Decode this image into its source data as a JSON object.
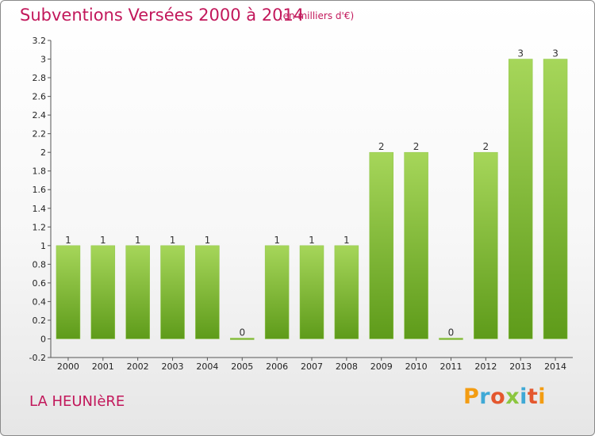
{
  "header": {
    "title": "Subventions Versées 2000 à 2014",
    "subtitle": "(en milliers d'€)"
  },
  "footer": {
    "location": "LA HEUNIèRE",
    "logo": "Proxiti"
  },
  "colors": {
    "bar_top": "#a6d65a",
    "bar_bottom": "#5e9b1a",
    "accent": "#c2185b"
  },
  "chart_data": {
    "type": "bar",
    "title": "Subventions Versées 2000 à 2014",
    "subtitle": "(en milliers d'€)",
    "xlabel": "",
    "ylabel": "",
    "categories": [
      "2000",
      "2001",
      "2002",
      "2003",
      "2004",
      "2005",
      "2006",
      "2007",
      "2008",
      "2009",
      "2010",
      "2011",
      "2012",
      "2013",
      "2014"
    ],
    "values": [
      1,
      1,
      1,
      1,
      1,
      0,
      1,
      1,
      1,
      2,
      2,
      0,
      2,
      3,
      3
    ],
    "value_labels": [
      "1",
      "1",
      "1",
      "1",
      "1",
      "0",
      "1",
      "1",
      "1",
      "2",
      "2",
      "0",
      "2",
      "3",
      "3"
    ],
    "ylim": [
      -0.2,
      3.2
    ],
    "yticks": [
      "-0.2",
      "0",
      "0.2",
      "0.4",
      "0.6",
      "0.8",
      "1",
      "1.2",
      "1.4",
      "1.6",
      "1.8",
      "2",
      "2.2",
      "2.4",
      "2.6",
      "2.8",
      "3",
      "3.2"
    ],
    "grid": false,
    "legend": "none"
  }
}
